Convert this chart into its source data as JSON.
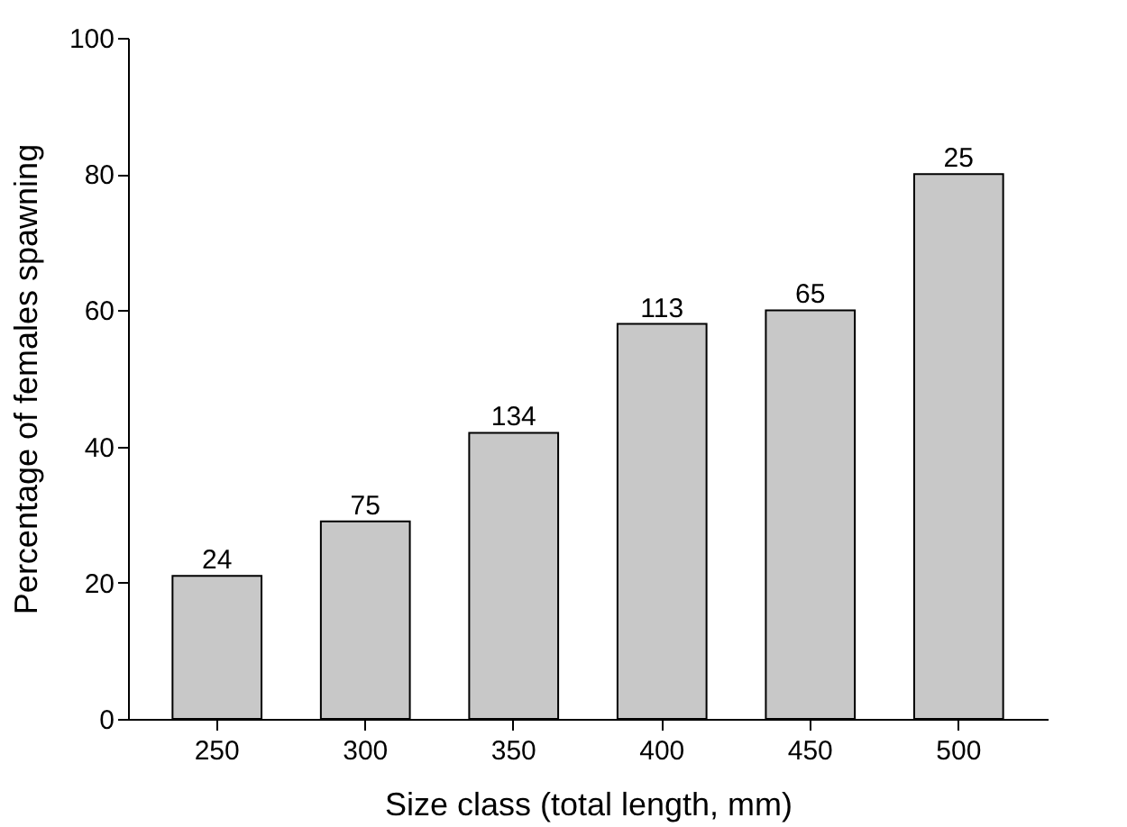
{
  "chart_data": {
    "type": "bar",
    "xlabel": "Size class (total length, mm)",
    "ylabel": "Percentage of females spawning",
    "categories": [
      "250",
      "300",
      "350",
      "400",
      "450",
      "500"
    ],
    "values": [
      21,
      29,
      42,
      58,
      60,
      80
    ],
    "annotations": [
      {
        "text": "24",
        "x": "250",
        "y": 21
      },
      {
        "text": "75",
        "x": "300",
        "y": 29
      },
      {
        "text": "134",
        "x": "350",
        "y": 42
      },
      {
        "text": "113",
        "x": "400",
        "y": 58
      },
      {
        "text": "65",
        "x": "450",
        "y": 60
      },
      {
        "text": "25",
        "x": "500",
        "y": 80
      }
    ],
    "color": "#c8c8c8",
    "ylim": [
      0,
      100
    ],
    "yticks": [
      0,
      20,
      40,
      60,
      80,
      100
    ],
    "grid": false
  }
}
